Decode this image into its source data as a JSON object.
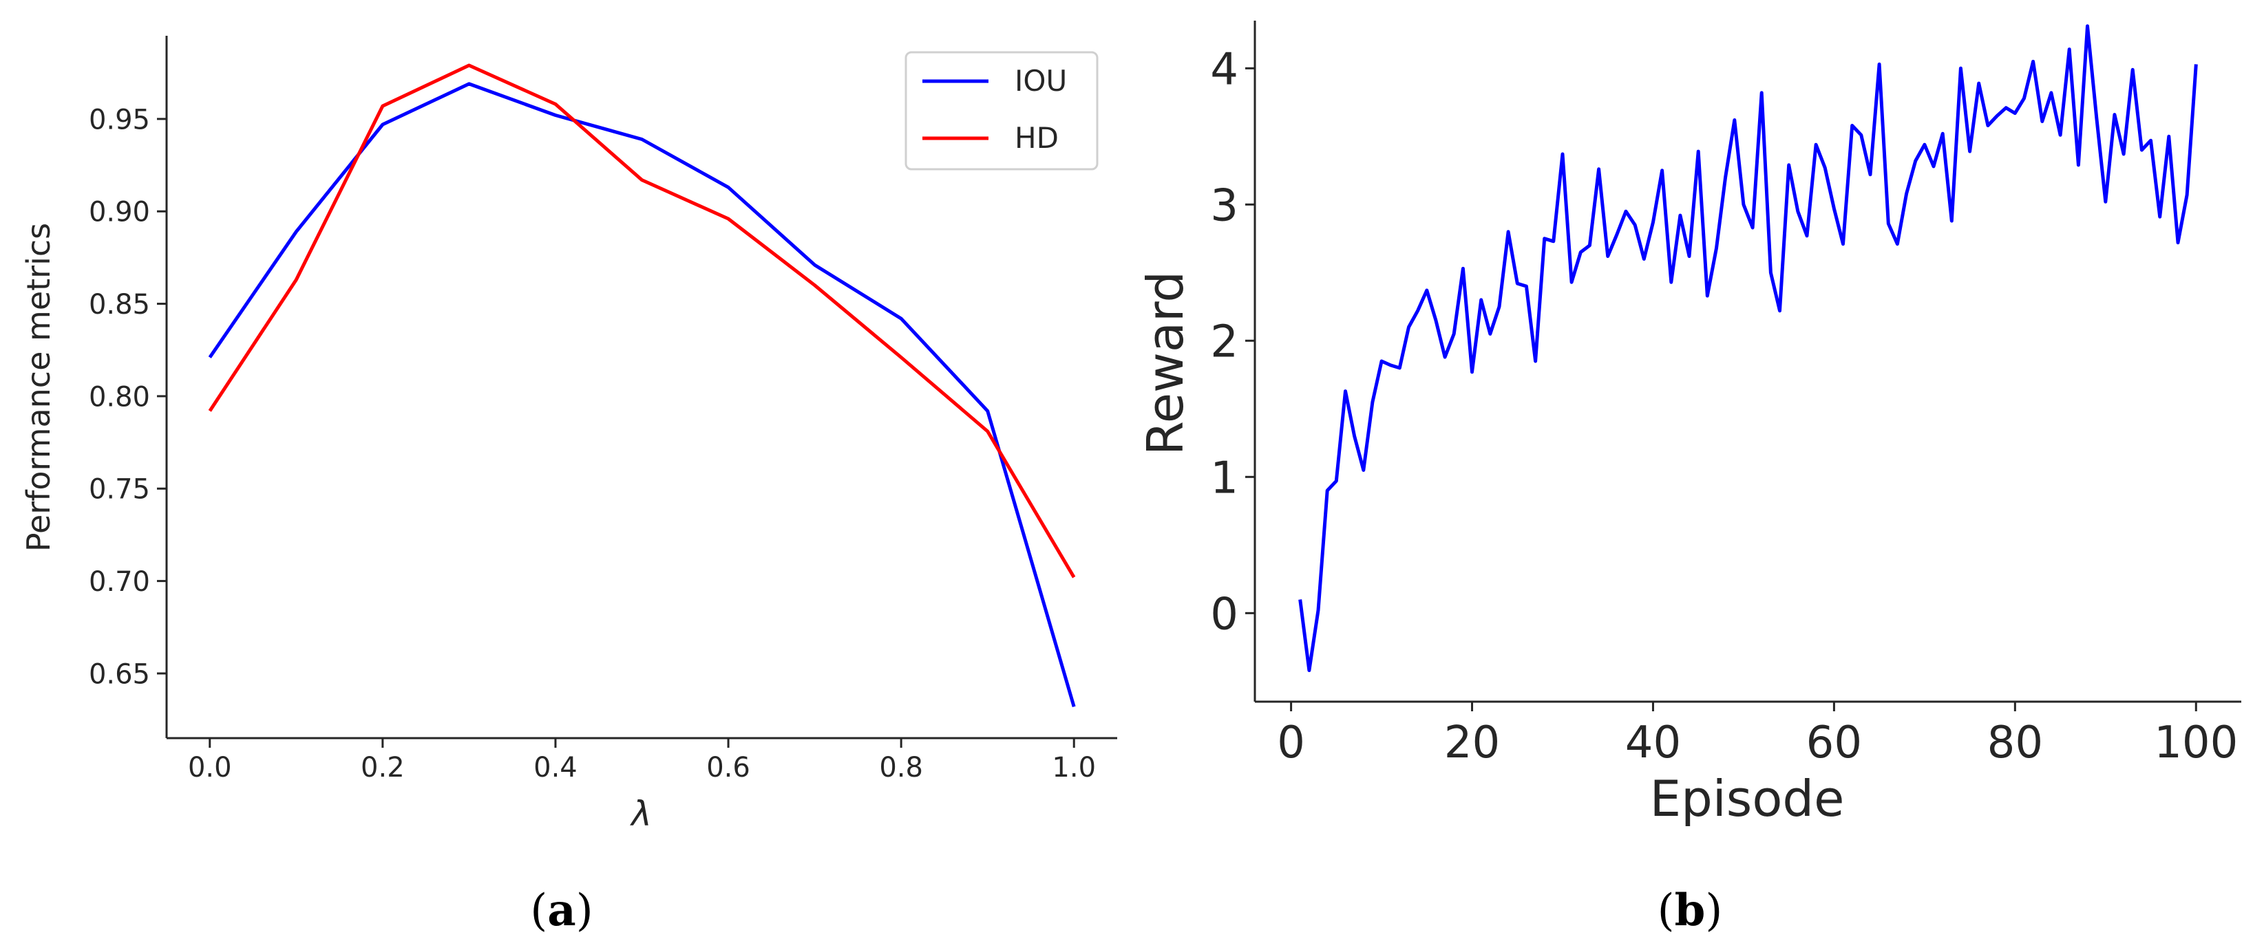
{
  "chart_data": [
    {
      "type": "line",
      "xlabel": "λ",
      "ylabel": "Performance metrics",
      "xlim": [
        -0.05,
        1.05
      ],
      "ylim": [
        0.615,
        0.995
      ],
      "xticks": [
        "0.0",
        "0.2",
        "0.4",
        "0.6",
        "0.8",
        "1.0"
      ],
      "yticks": [
        "0.65",
        "0.70",
        "0.75",
        "0.80",
        "0.85",
        "0.90",
        "0.95"
      ],
      "legend": "top-right",
      "grid": false,
      "x": [
        0.0,
        0.1,
        0.2,
        0.3,
        0.4,
        0.5,
        0.6,
        0.7,
        0.8,
        0.9,
        1.0
      ],
      "series": [
        {
          "name": "IOU",
          "color": "#0000ff",
          "values": [
            0.821,
            0.889,
            0.947,
            0.969,
            0.952,
            0.939,
            0.913,
            0.871,
            0.842,
            0.792,
            0.632
          ]
        },
        {
          "name": "HD",
          "color": "#ff0000",
          "values": [
            0.792,
            0.863,
            0.957,
            0.979,
            0.958,
            0.917,
            0.896,
            0.86,
            0.821,
            0.781,
            0.702
          ]
        }
      ],
      "caption": {
        "open": "(",
        "letter": "a",
        "close": ")"
      }
    },
    {
      "type": "line",
      "xlabel": "Episode",
      "ylabel": "Reward",
      "xlim": [
        -4,
        105
      ],
      "ylim": [
        -0.65,
        4.35
      ],
      "xticks": [
        "0",
        "20",
        "40",
        "60",
        "80",
        "100"
      ],
      "yticks": [
        "0",
        "1",
        "2",
        "3",
        "4"
      ],
      "grid": false,
      "series": [
        {
          "color": "#0000ff",
          "x": [
            1,
            2,
            3,
            4,
            5,
            6,
            7,
            8,
            9,
            10,
            11,
            12,
            13,
            14,
            15,
            16,
            17,
            18,
            19,
            20,
            21,
            22,
            23,
            24,
            25,
            26,
            27,
            28,
            29,
            30,
            31,
            32,
            33,
            34,
            35,
            36,
            37,
            38,
            39,
            40,
            41,
            42,
            43,
            44,
            45,
            46,
            47,
            48,
            49,
            50,
            51,
            52,
            53,
            54,
            55,
            56,
            57,
            58,
            59,
            60,
            61,
            62,
            63,
            64,
            65,
            66,
            67,
            68,
            69,
            70,
            71,
            72,
            73,
            74,
            75,
            76,
            77,
            78,
            79,
            80,
            81,
            82,
            83,
            84,
            85,
            86,
            87,
            88,
            89,
            90,
            91,
            92,
            93,
            94,
            95,
            96,
            97,
            98,
            99,
            100
          ],
          "values": [
            0.1,
            -0.42,
            0.02,
            0.9,
            0.97,
            1.63,
            1.3,
            1.05,
            1.55,
            1.85,
            1.82,
            1.8,
            2.1,
            2.22,
            2.37,
            2.15,
            1.88,
            2.05,
            2.53,
            1.77,
            2.3,
            2.05,
            2.25,
            2.8,
            2.42,
            2.4,
            1.85,
            2.75,
            2.73,
            3.37,
            2.43,
            2.65,
            2.7,
            3.26,
            2.62,
            2.78,
            2.95,
            2.85,
            2.6,
            2.87,
            3.25,
            2.43,
            2.92,
            2.62,
            3.39,
            2.33,
            2.68,
            3.2,
            3.62,
            3.0,
            2.83,
            3.82,
            2.5,
            2.22,
            3.29,
            2.95,
            2.77,
            3.44,
            3.27,
            2.97,
            2.71,
            3.58,
            3.51,
            3.22,
            4.03,
            2.86,
            2.71,
            3.08,
            3.32,
            3.44,
            3.28,
            3.52,
            2.88,
            4.0,
            3.39,
            3.89,
            3.58,
            3.65,
            3.71,
            3.67,
            3.78,
            4.05,
            3.61,
            3.82,
            3.51,
            4.14,
            3.29,
            4.31,
            3.64,
            3.02,
            3.66,
            3.37,
            3.99,
            3.4,
            3.47,
            2.91,
            3.5,
            2.72,
            3.07,
            4.03
          ]
        }
      ],
      "caption": {
        "open": "(",
        "letter": "b",
        "close": ")"
      }
    }
  ]
}
